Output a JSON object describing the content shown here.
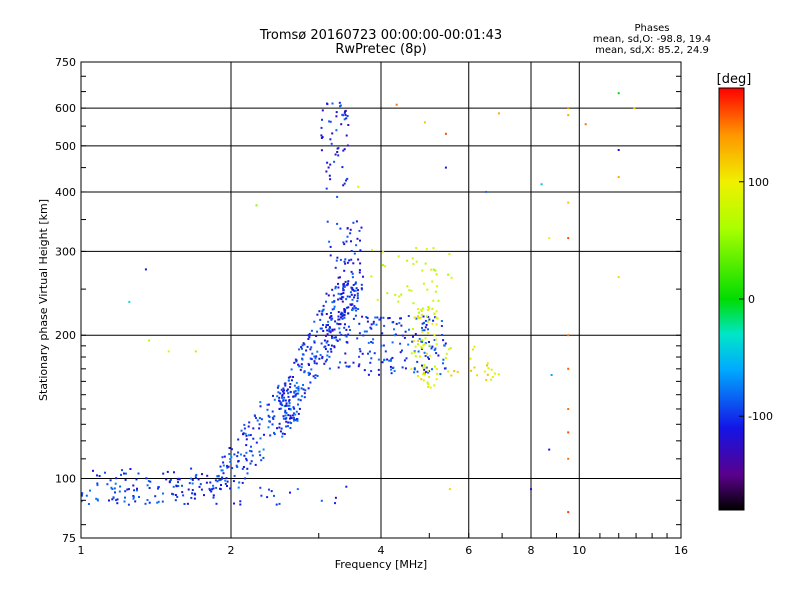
{
  "header": {
    "title_line1": "Tromsø 20160723 00:00:00-00:01:43",
    "title_line2": "RwPretec (8p)",
    "info_title": "Phases",
    "info_line1": "mean, sd,O: -98.8, 19.4",
    "info_line2": "mean, sd,X: 85.2, 24.9"
  },
  "colorbar": {
    "label": "[deg]",
    "ticks": [
      {
        "value": 100,
        "label": "100"
      },
      {
        "value": 0,
        "label": "0"
      },
      {
        "value": -100,
        "label": "-100"
      }
    ],
    "range": [
      -180,
      180
    ],
    "palette": "rainbow"
  },
  "chart_data": {
    "type": "scatter",
    "xlabel": "Frequency [MHz]",
    "ylabel": "Stationary phase Virtual Height [km]",
    "xscale": "log",
    "yscale": "log",
    "xlim": [
      1,
      16
    ],
    "ylim": [
      75,
      750
    ],
    "xticks": [
      {
        "value": 1,
        "label": "1"
      },
      {
        "value": 2,
        "label": "2"
      },
      {
        "value": 4,
        "label": "4"
      },
      {
        "value": 6,
        "label": "6"
      },
      {
        "value": 8,
        "label": "8"
      },
      {
        "value": 10,
        "label": "10"
      },
      {
        "value": 16,
        "label": "16"
      }
    ],
    "yticks": [
      {
        "value": 75,
        "label": "75"
      },
      {
        "value": 100,
        "label": "100"
      },
      {
        "value": 200,
        "label": "200"
      },
      {
        "value": 300,
        "label": "300"
      },
      {
        "value": 400,
        "label": "400"
      },
      {
        "value": 500,
        "label": "500"
      },
      {
        "value": 600,
        "label": "600"
      },
      {
        "value": 750,
        "label": "750"
      }
    ],
    "grid": true,
    "color_by": "phase [deg]",
    "clusters": [
      {
        "x": [
          1.0,
          1.9
        ],
        "y": [
          88,
          105
        ],
        "phase": -100,
        "count": 120
      },
      {
        "x": [
          1.9,
          2.8
        ],
        "y": [
          95,
          160
        ],
        "phase": -95,
        "count": 170
      },
      {
        "x": [
          2.5,
          3.6
        ],
        "y": [
          130,
          260
        ],
        "phase": -100,
        "count": 260
      },
      {
        "x": [
          3.1,
          3.7
        ],
        "y": [
          170,
          350
        ],
        "phase": -105,
        "count": 120
      },
      {
        "x": [
          3.7,
          5.4
        ],
        "y": [
          165,
          220
        ],
        "phase": -100,
        "count": 140
      },
      {
        "x": [
          3.0,
          3.45
        ],
        "y": [
          390,
          620
        ],
        "phase": -105,
        "count": 55
      },
      {
        "x": [
          1.0,
          3.6
        ],
        "y": [
          88,
          97
        ],
        "phase": -100,
        "count": 35
      },
      {
        "x": [
          4.6,
          5.2
        ],
        "y": [
          155,
          230
        ],
        "phase": 90,
        "count": 70
      },
      {
        "x": [
          3.8,
          5.6
        ],
        "y": [
          230,
          310
        ],
        "phase": 80,
        "count": 40
      },
      {
        "x": [
          5.4,
          6.9
        ],
        "y": [
          160,
          190
        ],
        "phase": 100,
        "count": 25
      }
    ],
    "points": [
      {
        "x": 9.5,
        "y": 600,
        "phase": 140
      },
      {
        "x": 9.5,
        "y": 580,
        "phase": 130
      },
      {
        "x": 9.5,
        "y": 320,
        "phase": 160
      },
      {
        "x": 9.5,
        "y": 200,
        "phase": 150
      },
      {
        "x": 9.5,
        "y": 170,
        "phase": 155
      },
      {
        "x": 9.5,
        "y": 140,
        "phase": 150
      },
      {
        "x": 9.5,
        "y": 125,
        "phase": 160
      },
      {
        "x": 9.5,
        "y": 110,
        "phase": 150
      },
      {
        "x": 9.5,
        "y": 85,
        "phase": 165
      },
      {
        "x": 9.5,
        "y": 380,
        "phase": 120
      },
      {
        "x": 8.7,
        "y": 320,
        "phase": 100
      },
      {
        "x": 8.8,
        "y": 165,
        "phase": -60
      },
      {
        "x": 8.7,
        "y": 115,
        "phase": -110
      },
      {
        "x": 8.4,
        "y": 415,
        "phase": -50
      },
      {
        "x": 8.0,
        "y": 95,
        "phase": -120
      },
      {
        "x": 12.0,
        "y": 645,
        "phase": 0
      },
      {
        "x": 12.0,
        "y": 490,
        "phase": -110
      },
      {
        "x": 12.0,
        "y": 430,
        "phase": 130
      },
      {
        "x": 12.0,
        "y": 265,
        "phase": 110
      },
      {
        "x": 12.9,
        "y": 600,
        "phase": 110
      },
      {
        "x": 10.3,
        "y": 555,
        "phase": 150
      },
      {
        "x": 6.9,
        "y": 585,
        "phase": 130
      },
      {
        "x": 6.5,
        "y": 400,
        "phase": -80
      },
      {
        "x": 5.4,
        "y": 530,
        "phase": 160
      },
      {
        "x": 5.4,
        "y": 450,
        "phase": -110
      },
      {
        "x": 4.3,
        "y": 610,
        "phase": 150
      },
      {
        "x": 4.9,
        "y": 560,
        "phase": 120
      },
      {
        "x": 5.5,
        "y": 95,
        "phase": 110
      },
      {
        "x": 1.35,
        "y": 275,
        "phase": -110
      },
      {
        "x": 1.25,
        "y": 235,
        "phase": -30
      },
      {
        "x": 1.37,
        "y": 195,
        "phase": 60
      },
      {
        "x": 1.5,
        "y": 185,
        "phase": 90
      },
      {
        "x": 1.7,
        "y": 185,
        "phase": 60
      },
      {
        "x": 2.25,
        "y": 375,
        "phase": 50
      },
      {
        "x": 3.6,
        "y": 410,
        "phase": 90
      }
    ]
  }
}
